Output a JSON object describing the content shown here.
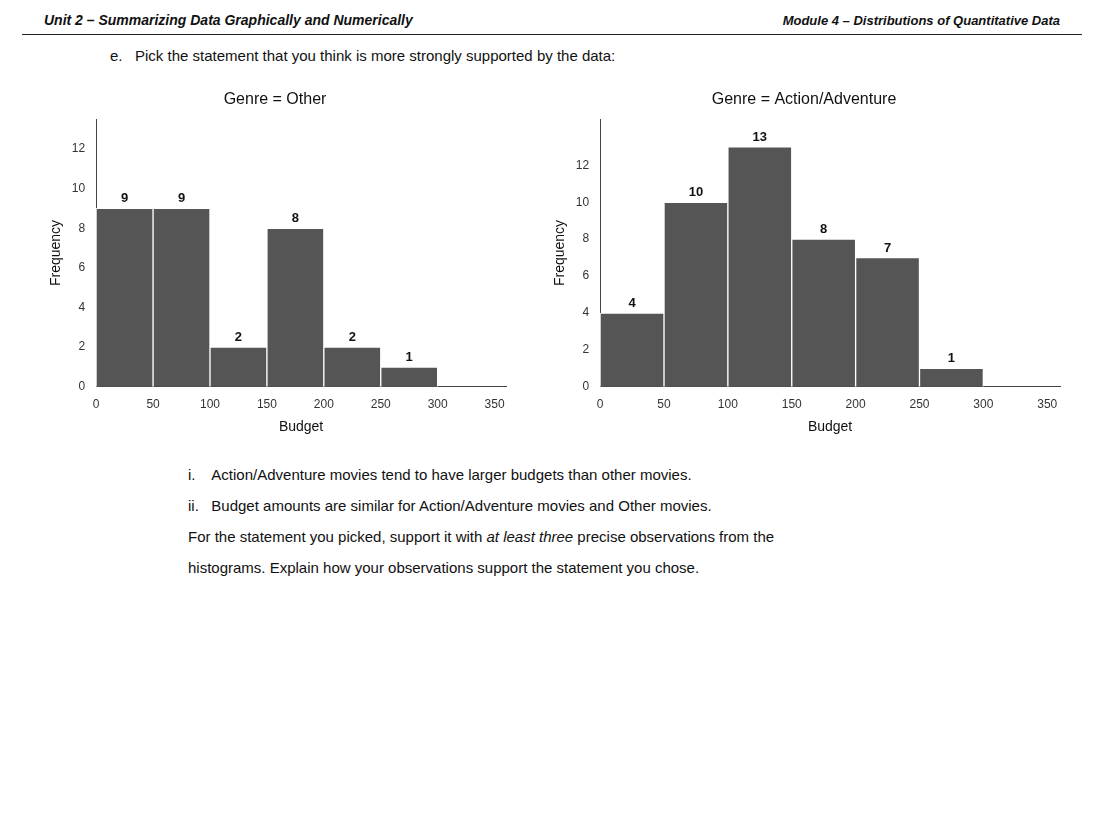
{
  "chart_data": [
    {
      "type": "histogram",
      "title": "Genre = Other",
      "xlabel": "Budget",
      "ylabel": "Frequency",
      "bins": [
        0,
        50,
        100,
        150,
        200,
        250,
        300
      ],
      "values": [
        9,
        9,
        2,
        8,
        2,
        1
      ],
      "color": "#555555",
      "xlim": [
        0,
        360
      ],
      "xticks": [
        0,
        50,
        100,
        150,
        200,
        250,
        300,
        350
      ],
      "ylim": [
        0,
        13.5
      ],
      "yticks": [
        0,
        2,
        4,
        6,
        8,
        10,
        12
      ],
      "grid": false,
      "data_labels": true,
      "annotations": [
        "Unit 2 – Summarizing Data Graphically and Numerically",
        "Module 4 – Distributions of Quantitative Data",
        "e.   Pick the statement that you think is more strongly supported by the data:",
        "i.    Action/Adventure movies tend to have larger budgets than other movies.",
        "ii.   Budget amounts are similar for Action/Adventure movies and Other movies.",
        [
          "For the statement you picked, support it with ",
          "at least three",
          " precise observations from the"
        ],
        "histograms. Explain how your observations support the statement you chose."
      ]
    },
    {
      "type": "histogram",
      "title": "Genre = Action/Adventure",
      "xlabel": "Budget",
      "ylabel": "Frequency",
      "bins": [
        0,
        50,
        100,
        150,
        200,
        250,
        300
      ],
      "values": [
        4,
        10,
        13,
        8,
        7,
        1
      ],
      "color": "#555555",
      "xlim": [
        0,
        360
      ],
      "xticks": [
        0,
        50,
        100,
        150,
        200,
        250,
        300,
        350
      ],
      "ylim": [
        0,
        14.5
      ],
      "yticks": [
        0,
        2,
        4,
        6,
        8,
        10,
        12
      ],
      "grid": false,
      "data_labels": true
    }
  ]
}
